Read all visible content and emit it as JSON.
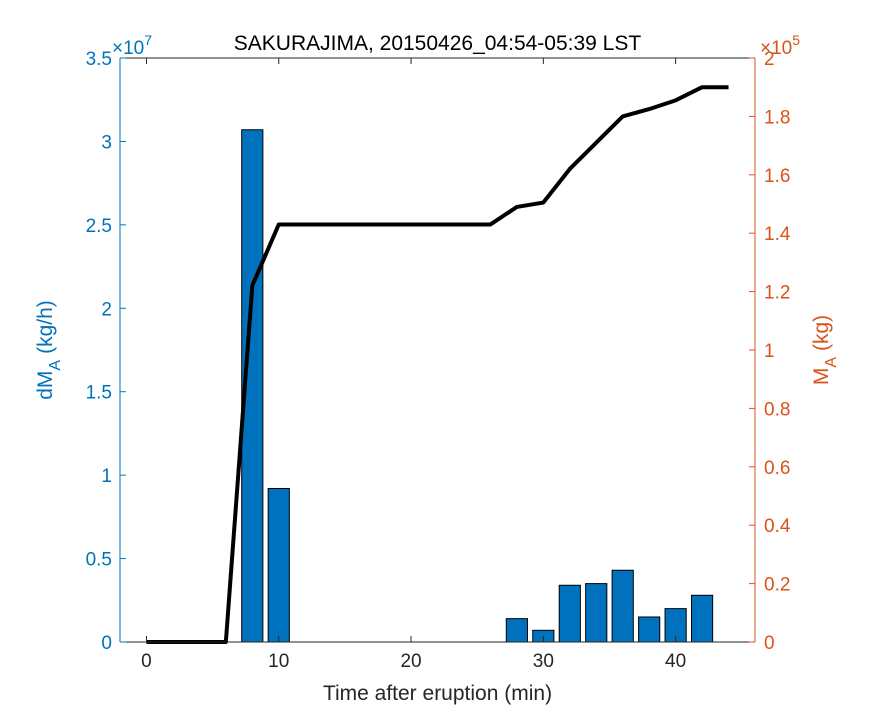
{
  "chart_data": {
    "type": "bar",
    "title": "SAKURAJIMA, 20150426_04:54-05:39 LST",
    "xlabel": "Time after eruption (min)",
    "xlim": [
      -2,
      46
    ],
    "xticks": [
      0,
      10,
      20,
      30,
      40
    ],
    "left_axis": {
      "label_main": "dM",
      "label_sub": "A",
      "label_unit": "(kg/h)",
      "exponent_base": "×10",
      "exponent_power": "7",
      "ylim": [
        0,
        3.5
      ],
      "ticks": [
        0,
        0.5,
        1,
        1.5,
        2,
        2.5,
        3,
        3.5
      ],
      "tick_labels": [
        "0",
        "0.5",
        "1",
        "1.5",
        "2",
        "2.5",
        "3",
        "3.5"
      ],
      "color": "#0072BD"
    },
    "right_axis": {
      "label_main": "M",
      "label_sub": "A",
      "label_unit": "(kg)",
      "exponent_base": "×10",
      "exponent_power": "5",
      "ylim": [
        0,
        2
      ],
      "ticks": [
        0,
        0.2,
        0.4,
        0.6,
        0.8,
        1,
        1.2,
        1.4,
        1.6,
        1.8,
        2
      ],
      "tick_labels": [
        "0",
        "0.2",
        "0.4",
        "0.6",
        "0.8",
        "1",
        "1.2",
        "1.4",
        "1.6",
        "1.8",
        "2"
      ],
      "color": "#D95319"
    },
    "bars": {
      "axis": "left",
      "color": "#0072BD",
      "x": [
        8,
        10,
        28,
        30,
        32,
        34,
        36,
        38,
        40,
        42
      ],
      "values": [
        3.07,
        0.92,
        0.14,
        0.07,
        0.34,
        0.35,
        0.43,
        0.15,
        0.2,
        0.28
      ]
    },
    "line": {
      "axis": "right",
      "color": "#000000",
      "x": [
        0,
        6,
        8,
        10,
        26,
        28,
        30,
        32,
        34,
        36,
        38,
        40,
        42,
        44
      ],
      "values": [
        0,
        0,
        1.22,
        1.43,
        1.43,
        1.49,
        1.505,
        1.62,
        1.71,
        1.8,
        1.825,
        1.855,
        1.9,
        1.9
      ]
    }
  }
}
